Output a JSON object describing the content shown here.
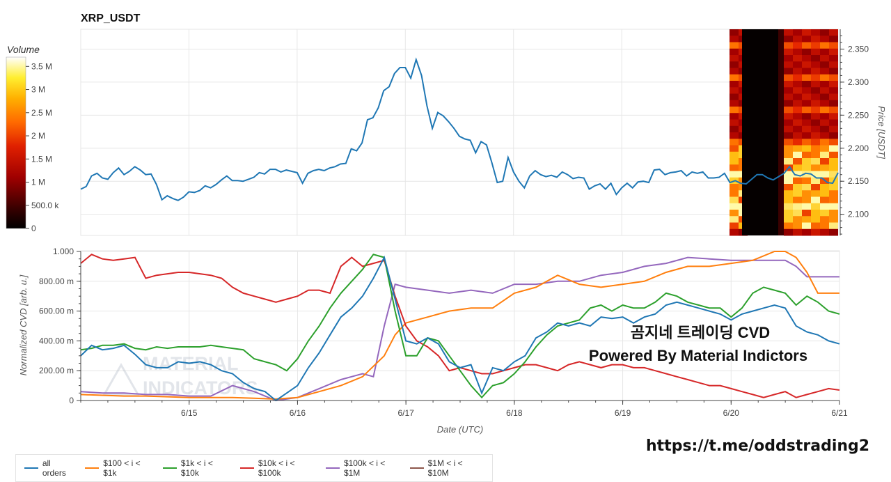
{
  "colors": {
    "all_orders": "#1f77b4",
    "r100_1k": "#ff7f0e",
    "r1k_10k": "#2ca02c",
    "r10k_100k": "#d62728",
    "r100k_1m": "#9467bd",
    "r1m_10m": "#8c564b"
  },
  "chart_data": [
    {
      "type": "line",
      "title": "XRP_USDT",
      "ylabel": "Price [USDT]",
      "y_ticks": [
        "2.100",
        "2.150",
        "2.200",
        "2.250",
        "2.300",
        "2.350"
      ],
      "ylim": [
        2.068,
        2.38
      ],
      "x_range_days": [
        14.0,
        21.0
      ],
      "series": [
        {
          "key": "all_orders",
          "t": [
            14.0,
            14.05,
            14.1,
            14.15,
            14.2,
            14.25,
            14.3,
            14.35,
            14.4,
            14.45,
            14.5,
            14.55,
            14.6,
            14.65,
            14.7,
            14.75,
            14.8,
            14.85,
            14.9,
            14.95,
            15.0,
            15.05,
            15.1,
            15.15,
            15.2,
            15.25,
            15.3,
            15.35,
            15.4,
            15.45,
            15.5,
            15.55,
            15.6,
            15.65,
            15.7,
            15.75,
            15.8,
            15.85,
            15.9,
            15.95,
            16.0,
            16.05,
            16.1,
            16.15,
            16.2,
            16.25,
            16.3,
            16.35,
            16.4,
            16.45,
            16.5,
            16.55,
            16.6,
            16.65,
            16.7,
            16.75,
            16.8,
            16.85,
            16.9,
            16.95,
            17.0,
            17.05,
            17.1,
            17.15,
            17.2,
            17.25,
            17.3,
            17.35,
            17.4,
            17.45,
            17.5,
            17.55,
            17.6,
            17.65,
            17.7,
            17.75,
            17.8,
            17.85,
            17.9,
            17.95,
            18.0,
            18.05,
            18.1,
            18.15,
            18.2,
            18.25,
            18.3,
            18.35,
            18.4,
            18.45,
            18.5,
            18.55,
            18.6,
            18.65,
            18.7,
            18.75,
            18.8,
            18.85,
            18.9,
            18.95,
            19.0,
            19.05,
            19.1,
            19.15,
            19.2,
            19.25,
            19.3,
            19.35,
            19.4,
            19.45,
            19.5,
            19.55,
            19.6,
            19.65,
            19.7,
            19.75,
            19.8,
            19.85,
            19.9,
            19.95,
            20.0,
            20.05,
            20.1,
            20.15,
            20.2,
            20.25,
            20.3,
            20.35,
            20.4,
            20.45,
            20.5,
            20.55,
            20.6,
            20.65,
            20.7,
            20.75,
            20.8,
            20.85,
            20.9,
            20.95,
            21.0
          ],
          "y": [
            2.138,
            2.142,
            2.158,
            2.162,
            2.155,
            2.153,
            2.163,
            2.17,
            2.16,
            2.165,
            2.172,
            2.167,
            2.16,
            2.161,
            2.145,
            2.122,
            2.128,
            2.124,
            2.121,
            2.126,
            2.134,
            2.133,
            2.136,
            2.143,
            2.14,
            2.145,
            2.152,
            2.158,
            2.151,
            2.151,
            2.15,
            2.153,
            2.156,
            2.163,
            2.161,
            2.168,
            2.168,
            2.164,
            2.167,
            2.165,
            2.163,
            2.147,
            2.162,
            2.166,
            2.168,
            2.166,
            2.17,
            2.172,
            2.176,
            2.177,
            2.199,
            2.196,
            2.208,
            2.243,
            2.246,
            2.261,
            2.287,
            2.293,
            2.313,
            2.322,
            2.322,
            2.306,
            2.334,
            2.31,
            2.264,
            2.23,
            2.254,
            2.249,
            2.24,
            2.23,
            2.218,
            2.214,
            2.212,
            2.193,
            2.21,
            2.205,
            2.178,
            2.148,
            2.15,
            2.186,
            2.164,
            2.15,
            2.14,
            2.158,
            2.166,
            2.16,
            2.157,
            2.159,
            2.156,
            2.164,
            2.16,
            2.154,
            2.156,
            2.155,
            2.138,
            2.143,
            2.146,
            2.138,
            2.147,
            2.13,
            2.14,
            2.147,
            2.14,
            2.149,
            2.15,
            2.148,
            2.167,
            2.168,
            2.16,
            2.163,
            2.164,
            2.166,
            2.158,
            2.164,
            2.162,
            2.164,
            2.155,
            2.155,
            2.156,
            2.162,
            2.148,
            2.151,
            2.147,
            2.146,
            2.153,
            2.16,
            2.16,
            2.155,
            2.152,
            2.157,
            2.162,
            2.172,
            2.16,
            2.158,
            2.162,
            2.161,
            2.155,
            2.155,
            2.148,
            2.147,
            2.163
          ]
        }
      ]
    },
    {
      "type": "line",
      "ylabel": "Normalized CVD [arb. u.]",
      "xlabel": "Date (UTC)",
      "y_ticks": [
        "0",
        "200.00 m",
        "400.00 m",
        "600.00 m",
        "800.00 m",
        "1.000"
      ],
      "ylim": [
        0,
        1.0
      ],
      "x_ticks": [
        "6/15",
        "6/16",
        "6/17",
        "6/18",
        "6/19",
        "6/20",
        "6/21"
      ],
      "x_range_days": [
        14.0,
        21.0
      ],
      "legend_position": "bottom",
      "series": [
        {
          "key": "all_orders",
          "name": "all orders",
          "t": [
            14.0,
            14.1,
            14.2,
            14.3,
            14.4,
            14.5,
            14.6,
            14.7,
            14.8,
            14.9,
            15.0,
            15.1,
            15.2,
            15.3,
            15.4,
            15.5,
            15.6,
            15.7,
            15.8,
            15.9,
            16.0,
            16.1,
            16.2,
            16.3,
            16.4,
            16.5,
            16.6,
            16.7,
            16.8,
            16.9,
            17.0,
            17.1,
            17.2,
            17.3,
            17.4,
            17.5,
            17.6,
            17.7,
            17.8,
            17.9,
            18.0,
            18.1,
            18.2,
            18.3,
            18.4,
            18.5,
            18.6,
            18.7,
            18.8,
            18.9,
            19.0,
            19.1,
            19.2,
            19.3,
            19.4,
            19.5,
            19.6,
            19.7,
            19.8,
            19.9,
            20.0,
            20.1,
            20.2,
            20.3,
            20.4,
            20.5,
            20.6,
            20.7,
            20.8,
            20.9,
            21.0
          ],
          "y": [
            0.3,
            0.37,
            0.34,
            0.35,
            0.37,
            0.31,
            0.24,
            0.22,
            0.22,
            0.26,
            0.25,
            0.26,
            0.24,
            0.2,
            0.18,
            0.12,
            0.08,
            0.06,
            0.0,
            0.05,
            0.1,
            0.22,
            0.32,
            0.44,
            0.56,
            0.62,
            0.7,
            0.82,
            0.96,
            0.68,
            0.4,
            0.38,
            0.42,
            0.38,
            0.26,
            0.22,
            0.24,
            0.05,
            0.22,
            0.2,
            0.26,
            0.3,
            0.42,
            0.46,
            0.52,
            0.5,
            0.52,
            0.5,
            0.56,
            0.55,
            0.56,
            0.52,
            0.56,
            0.58,
            0.64,
            0.66,
            0.64,
            0.62,
            0.6,
            0.58,
            0.54,
            0.58,
            0.6,
            0.62,
            0.64,
            0.62,
            0.5,
            0.46,
            0.44,
            0.4,
            0.38
          ]
        },
        {
          "key": "r100_1k",
          "name": "$100 < i < $1k",
          "t": [
            14.0,
            14.2,
            14.4,
            14.6,
            14.8,
            15.0,
            15.2,
            15.4,
            15.6,
            15.8,
            16.0,
            16.2,
            16.4,
            16.6,
            16.8,
            16.9,
            17.0,
            17.2,
            17.4,
            17.6,
            17.8,
            18.0,
            18.2,
            18.4,
            18.6,
            18.8,
            19.0,
            19.2,
            19.4,
            19.6,
            19.8,
            20.0,
            20.2,
            20.4,
            20.5,
            20.6,
            20.7,
            20.8,
            21.0
          ],
          "y": [
            0.04,
            0.035,
            0.03,
            0.03,
            0.025,
            0.02,
            0.02,
            0.02,
            0.015,
            0.01,
            0.02,
            0.06,
            0.1,
            0.16,
            0.3,
            0.44,
            0.52,
            0.56,
            0.6,
            0.62,
            0.62,
            0.72,
            0.76,
            0.84,
            0.78,
            0.76,
            0.78,
            0.8,
            0.86,
            0.9,
            0.9,
            0.92,
            0.94,
            1.0,
            1.0,
            0.96,
            0.86,
            0.72,
            0.72
          ]
        },
        {
          "key": "r1k_10k",
          "name": "$1k < i < $10k",
          "t": [
            14.0,
            14.1,
            14.2,
            14.3,
            14.4,
            14.5,
            14.6,
            14.7,
            14.8,
            14.9,
            15.0,
            15.1,
            15.2,
            15.3,
            15.4,
            15.5,
            15.6,
            15.7,
            15.8,
            15.9,
            16.0,
            16.1,
            16.2,
            16.3,
            16.4,
            16.5,
            16.6,
            16.7,
            16.8,
            16.9,
            17.0,
            17.1,
            17.2,
            17.3,
            17.4,
            17.5,
            17.6,
            17.7,
            17.8,
            17.9,
            18.0,
            18.1,
            18.2,
            18.3,
            18.4,
            18.5,
            18.6,
            18.7,
            18.8,
            18.9,
            19.0,
            19.1,
            19.2,
            19.3,
            19.4,
            19.5,
            19.6,
            19.7,
            19.8,
            19.9,
            20.0,
            20.1,
            20.2,
            20.3,
            20.4,
            20.5,
            20.6,
            20.7,
            20.8,
            20.9,
            21.0
          ],
          "y": [
            0.34,
            0.35,
            0.37,
            0.37,
            0.38,
            0.35,
            0.34,
            0.36,
            0.35,
            0.36,
            0.36,
            0.36,
            0.37,
            0.36,
            0.35,
            0.34,
            0.28,
            0.26,
            0.24,
            0.2,
            0.28,
            0.4,
            0.5,
            0.62,
            0.72,
            0.8,
            0.88,
            0.98,
            0.96,
            0.6,
            0.3,
            0.3,
            0.42,
            0.4,
            0.3,
            0.2,
            0.1,
            0.02,
            0.1,
            0.12,
            0.18,
            0.26,
            0.36,
            0.44,
            0.5,
            0.52,
            0.54,
            0.62,
            0.64,
            0.6,
            0.64,
            0.62,
            0.62,
            0.66,
            0.72,
            0.7,
            0.66,
            0.64,
            0.62,
            0.62,
            0.56,
            0.62,
            0.72,
            0.76,
            0.74,
            0.72,
            0.64,
            0.7,
            0.66,
            0.6,
            0.58
          ]
        },
        {
          "key": "r10k_100k",
          "name": "$10k < i < $100k",
          "t": [
            14.0,
            14.1,
            14.2,
            14.3,
            14.4,
            14.5,
            14.6,
            14.7,
            14.8,
            14.9,
            15.0,
            15.1,
            15.2,
            15.3,
            15.4,
            15.5,
            15.6,
            15.7,
            15.8,
            15.9,
            16.0,
            16.1,
            16.2,
            16.3,
            16.4,
            16.5,
            16.6,
            16.7,
            16.8,
            16.9,
            17.0,
            17.1,
            17.2,
            17.3,
            17.4,
            17.5,
            17.6,
            17.7,
            17.8,
            17.9,
            18.0,
            18.1,
            18.2,
            18.3,
            18.4,
            18.5,
            18.6,
            18.7,
            18.8,
            18.9,
            19.0,
            19.1,
            19.2,
            19.3,
            19.4,
            19.5,
            19.6,
            19.7,
            19.8,
            19.9,
            20.0,
            20.1,
            20.2,
            20.3,
            20.4,
            20.5,
            20.6,
            20.7,
            20.8,
            20.9,
            21.0
          ],
          "y": [
            0.92,
            0.98,
            0.95,
            0.94,
            0.95,
            0.96,
            0.82,
            0.84,
            0.85,
            0.86,
            0.86,
            0.85,
            0.84,
            0.82,
            0.76,
            0.72,
            0.7,
            0.68,
            0.66,
            0.68,
            0.7,
            0.74,
            0.74,
            0.72,
            0.9,
            0.96,
            0.9,
            0.92,
            0.94,
            0.7,
            0.5,
            0.4,
            0.36,
            0.3,
            0.2,
            0.22,
            0.2,
            0.18,
            0.18,
            0.2,
            0.22,
            0.24,
            0.24,
            0.22,
            0.2,
            0.24,
            0.26,
            0.24,
            0.22,
            0.24,
            0.24,
            0.22,
            0.22,
            0.2,
            0.18,
            0.16,
            0.14,
            0.12,
            0.1,
            0.1,
            0.08,
            0.06,
            0.04,
            0.02,
            0.04,
            0.06,
            0.02,
            0.04,
            0.06,
            0.08,
            0.07
          ]
        },
        {
          "key": "r100k_1m",
          "name": "$100k < i < $1M",
          "t": [
            14.0,
            14.2,
            14.4,
            14.6,
            14.8,
            15.0,
            15.2,
            15.4,
            15.6,
            15.8,
            16.0,
            16.2,
            16.4,
            16.6,
            16.7,
            16.8,
            16.9,
            17.0,
            17.2,
            17.4,
            17.6,
            17.8,
            18.0,
            18.2,
            18.4,
            18.6,
            18.8,
            19.0,
            19.2,
            19.4,
            19.6,
            19.8,
            20.0,
            20.2,
            20.4,
            20.5,
            20.6,
            20.7,
            21.0
          ],
          "y": [
            0.06,
            0.05,
            0.05,
            0.04,
            0.04,
            0.03,
            0.03,
            0.1,
            0.06,
            0.0,
            0.02,
            0.08,
            0.14,
            0.18,
            0.16,
            0.5,
            0.78,
            0.76,
            0.74,
            0.72,
            0.74,
            0.72,
            0.78,
            0.78,
            0.8,
            0.8,
            0.84,
            0.86,
            0.9,
            0.92,
            0.96,
            0.95,
            0.94,
            0.94,
            0.94,
            0.94,
            0.9,
            0.83,
            0.83
          ]
        },
        {
          "key": "r1m_10m",
          "name": "$1M < i < $10M",
          "t": [],
          "y": []
        }
      ]
    }
  ],
  "heatmap": {
    "colorbar_title": "Volume",
    "colorbar_ticks": [
      "0",
      "500.0 k",
      "1 M",
      "1.5 M",
      "2 M",
      "2.5 M",
      "3 M",
      "3.5 M"
    ],
    "colorbar_max": 3.7
  },
  "overlay_text": {
    "line1": "곰지네 트레이딩 CVD",
    "line2": "Powered By Material Indictors",
    "link": "https://t.me/oddstrading2"
  }
}
